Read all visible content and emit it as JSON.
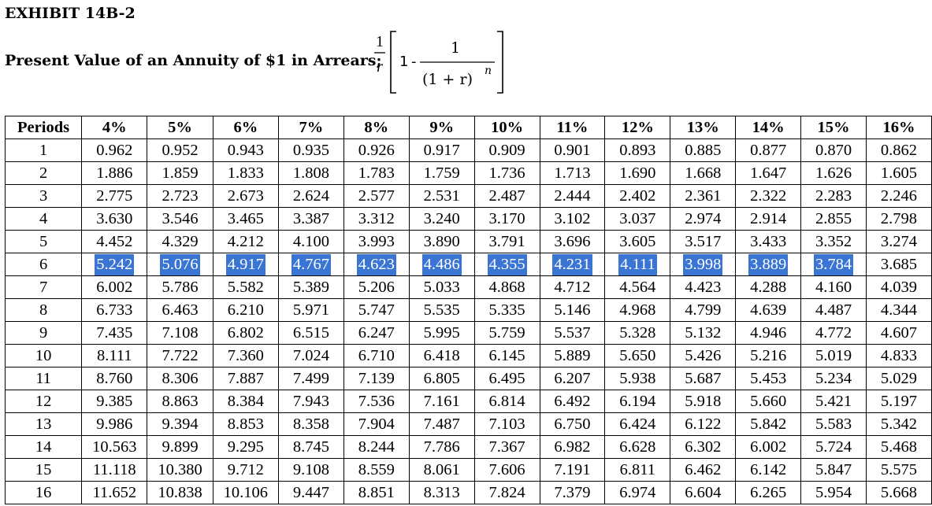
{
  "header": {
    "exhibit_title": "EXHIBIT 14B-2",
    "caption": "Present Value of an Annuity of $1 in Arrears;"
  },
  "formula": {
    "numerator_left": "1",
    "denominator_left": "r",
    "one": "1",
    "minus": "-",
    "numerator_right": "1",
    "denominator_right": "(1 + r)",
    "exponent": "n"
  },
  "table": {
    "headers": [
      "Periods",
      "4%",
      "5%",
      "6%",
      "7%",
      "8%",
      "9%",
      "10%",
      "11%",
      "12%",
      "13%",
      "14%",
      "15%",
      "16%"
    ],
    "highlighted_row": 6,
    "rows": [
      [
        "1",
        "0.962",
        "0.952",
        "0.943",
        "0.935",
        "0.926",
        "0.917",
        "0.909",
        "0.901",
        "0.893",
        "0.885",
        "0.877",
        "0.870",
        "0.862"
      ],
      [
        "2",
        "1.886",
        "1.859",
        "1.833",
        "1.808",
        "1.783",
        "1.759",
        "1.736",
        "1.713",
        "1.690",
        "1.668",
        "1.647",
        "1.626",
        "1.605"
      ],
      [
        "3",
        "2.775",
        "2.723",
        "2.673",
        "2.624",
        "2.577",
        "2.531",
        "2.487",
        "2.444",
        "2.402",
        "2.361",
        "2.322",
        "2.283",
        "2.246"
      ],
      [
        "4",
        "3.630",
        "3.546",
        "3.465",
        "3.387",
        "3.312",
        "3.240",
        "3.170",
        "3.102",
        "3.037",
        "2.974",
        "2.914",
        "2.855",
        "2.798"
      ],
      [
        "5",
        "4.452",
        "4.329",
        "4.212",
        "4.100",
        "3.993",
        "3.890",
        "3.791",
        "3.696",
        "3.605",
        "3.517",
        "3.433",
        "3.352",
        "3.274"
      ],
      [
        "6",
        "5.242",
        "5.076",
        "4.917",
        "4.767",
        "4.623",
        "4.486",
        "4.355",
        "4.231",
        "4.111",
        "3.998",
        "3.889",
        "3.784",
        "3.685"
      ],
      [
        "7",
        "6.002",
        "5.786",
        "5.582",
        "5.389",
        "5.206",
        "5.033",
        "4.868",
        "4.712",
        "4.564",
        "4.423",
        "4.288",
        "4.160",
        "4.039"
      ],
      [
        "8",
        "6.733",
        "6.463",
        "6.210",
        "5.971",
        "5.747",
        "5.535",
        "5.335",
        "5.146",
        "4.968",
        "4.799",
        "4.639",
        "4.487",
        "4.344"
      ],
      [
        "9",
        "7.435",
        "7.108",
        "6.802",
        "6.515",
        "6.247",
        "5.995",
        "5.759",
        "5.537",
        "5.328",
        "5.132",
        "4.946",
        "4.772",
        "4.607"
      ],
      [
        "10",
        "8.111",
        "7.722",
        "7.360",
        "7.024",
        "6.710",
        "6.418",
        "6.145",
        "5.889",
        "5.650",
        "5.426",
        "5.216",
        "5.019",
        "4.833"
      ],
      [
        "11",
        "8.760",
        "8.306",
        "7.887",
        "7.499",
        "7.139",
        "6.805",
        "6.495",
        "6.207",
        "5.938",
        "5.687",
        "5.453",
        "5.234",
        "5.029"
      ],
      [
        "12",
        "9.385",
        "8.863",
        "8.384",
        "7.943",
        "7.536",
        "7.161",
        "6.814",
        "6.492",
        "6.194",
        "5.918",
        "5.660",
        "5.421",
        "5.197"
      ],
      [
        "13",
        "9.986",
        "9.394",
        "8.853",
        "8.358",
        "7.904",
        "7.487",
        "7.103",
        "6.750",
        "6.424",
        "6.122",
        "5.842",
        "5.583",
        "5.342"
      ],
      [
        "14",
        "10.563",
        "9.899",
        "9.295",
        "8.745",
        "8.244",
        "7.786",
        "7.367",
        "6.982",
        "6.628",
        "6.302",
        "6.002",
        "5.724",
        "5.468"
      ],
      [
        "15",
        "11.118",
        "10.380",
        "9.712",
        "9.108",
        "8.559",
        "8.061",
        "7.606",
        "7.191",
        "6.811",
        "6.462",
        "6.142",
        "5.847",
        "5.575"
      ],
      [
        "16",
        "11.652",
        "10.838",
        "10.106",
        "9.447",
        "8.851",
        "8.313",
        "7.824",
        "7.379",
        "6.974",
        "6.604",
        "6.265",
        "5.954",
        "5.668"
      ]
    ]
  },
  "colors": {
    "selection_highlight": "#3a75d4",
    "text": "#000000",
    "background": "#ffffff"
  }
}
